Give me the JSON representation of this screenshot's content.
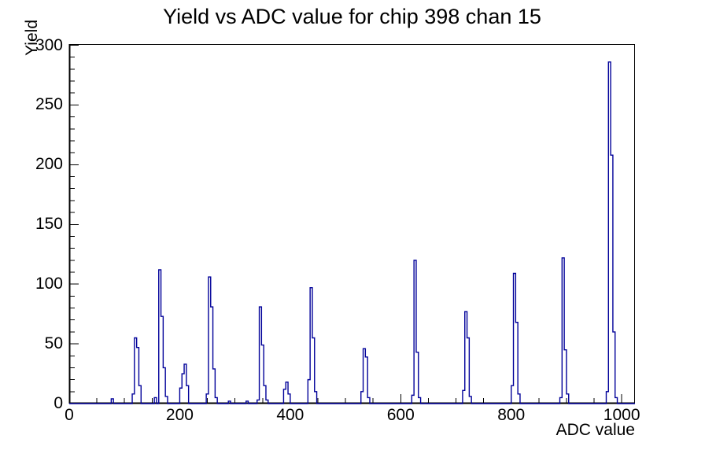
{
  "title": "Yield vs ADC value for chip 398 chan 15",
  "chart_data": {
    "type": "bar",
    "title": "Yield vs ADC value for chip 398 chan 15",
    "xlabel": "ADC value",
    "ylabel": "Yield",
    "xlim": [
      0,
      1024
    ],
    "ylim": [
      0,
      301
    ],
    "grid": false,
    "legend": "none",
    "bin_width": 4,
    "x_tick_labels": [
      "0",
      "200",
      "400",
      "600",
      "800",
      "1000"
    ],
    "x_major_ticks": [
      0,
      200,
      400,
      600,
      800,
      1000
    ],
    "x_minor_step": 50,
    "y_tick_labels": [
      "0",
      "50",
      "100",
      "150",
      "200",
      "250",
      "300"
    ],
    "y_major_ticks": [
      0,
      50,
      100,
      150,
      200,
      250,
      300
    ],
    "y_minor_step": 10,
    "line_color": "#000099",
    "frame_color": "#000000",
    "bins": [
      [
        76,
        4
      ],
      [
        114,
        8
      ],
      [
        118,
        55
      ],
      [
        122,
        47
      ],
      [
        126,
        15
      ],
      [
        154,
        5
      ],
      [
        162,
        112
      ],
      [
        166,
        73
      ],
      [
        170,
        30
      ],
      [
        174,
        6
      ],
      [
        200,
        13
      ],
      [
        204,
        25
      ],
      [
        208,
        33
      ],
      [
        212,
        15
      ],
      [
        248,
        8
      ],
      [
        252,
        106
      ],
      [
        256,
        81
      ],
      [
        260,
        29
      ],
      [
        264,
        5
      ],
      [
        288,
        2
      ],
      [
        320,
        2
      ],
      [
        340,
        3
      ],
      [
        344,
        81
      ],
      [
        348,
        49
      ],
      [
        352,
        15
      ],
      [
        356,
        3
      ],
      [
        388,
        12
      ],
      [
        392,
        18
      ],
      [
        396,
        8
      ],
      [
        432,
        20
      ],
      [
        436,
        97
      ],
      [
        440,
        55
      ],
      [
        444,
        10
      ],
      [
        528,
        10
      ],
      [
        532,
        46
      ],
      [
        536,
        39
      ],
      [
        540,
        5
      ],
      [
        620,
        7
      ],
      [
        624,
        120
      ],
      [
        628,
        43
      ],
      [
        632,
        5
      ],
      [
        712,
        11
      ],
      [
        716,
        77
      ],
      [
        720,
        55
      ],
      [
        724,
        6
      ],
      [
        800,
        15
      ],
      [
        804,
        109
      ],
      [
        808,
        68
      ],
      [
        812,
        8
      ],
      [
        888,
        5
      ],
      [
        892,
        122
      ],
      [
        896,
        45
      ],
      [
        900,
        8
      ],
      [
        972,
        10
      ],
      [
        976,
        286
      ],
      [
        980,
        208
      ],
      [
        984,
        60
      ],
      [
        988,
        5
      ]
    ]
  }
}
